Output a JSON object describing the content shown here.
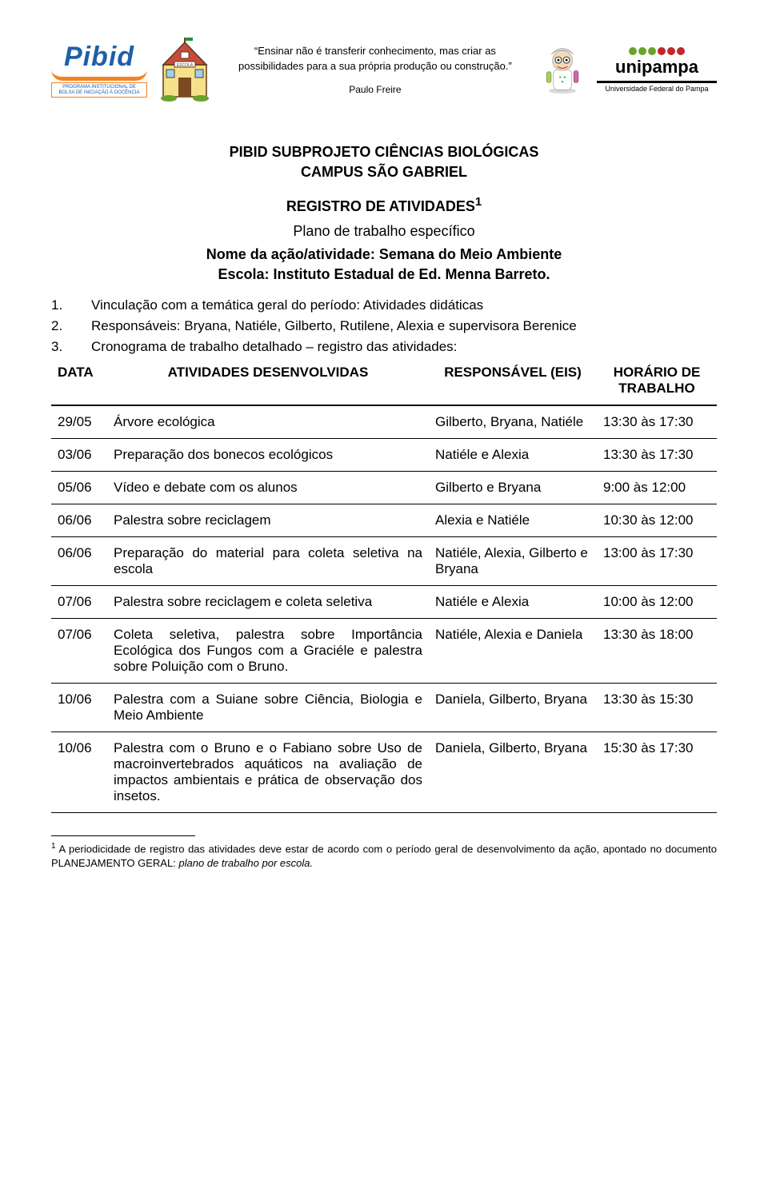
{
  "header": {
    "pibid": {
      "word": "Pibid",
      "sub": "PROGRAMA INSTITUCIONAL DE BOLSA DE INICIAÇÃO À DOCÊNCIA"
    },
    "quote": {
      "text": "“Ensinar não é transferir conhecimento, mas criar as possibilidades para a sua própria produção ou construção.”",
      "author": "Paulo Freire"
    },
    "unipampa": {
      "word": "unipampa",
      "sub": "Universidade Federal do Pampa"
    }
  },
  "title": {
    "line1": "PIBID SUBPROJETO CIÊNCIAS BIOLÓGICAS",
    "line2": "CAMPUS SÃO GABRIEL",
    "subtitle": "REGISTRO DE ATIVIDADES",
    "subtitle_sup": "1",
    "plano": "Plano de trabalho específico",
    "acao_label": "Nome da ação/atividade: ",
    "acao_value": "Semana do Meio Ambiente",
    "escola_label": "Escola: ",
    "escola_value": "Instituto Estadual de Ed. Menna Barreto."
  },
  "items": {
    "n1": "1.",
    "t1": "Vinculação com a temática geral do período: Atividades didáticas",
    "n2": "2.",
    "t2": "Responsáveis: Bryana, Natiéle, Gilberto, Rutilene, Alexia e supervisora Berenice",
    "n3": "3.",
    "t3": "Cronograma de trabalho detalhado – registro das atividades:"
  },
  "table": {
    "headers": {
      "data": "DATA",
      "atv": "ATIVIDADES DESENVOLVIDAS",
      "resp": "RESPONSÁVEL (EIS)",
      "hor": "HORÁRIO DE TRABALHO"
    },
    "rows": [
      {
        "data": "29/05",
        "atv": "Árvore ecológica",
        "resp": "Gilberto, Bryana, Natiéle",
        "hor": "13:30 às 17:30"
      },
      {
        "data": "03/06",
        "atv": "Preparação dos bonecos ecológicos",
        "resp": "Natiéle e Alexia",
        "hor": "13:30 às 17:30"
      },
      {
        "data": "05/06",
        "atv": "Vídeo e debate com os alunos",
        "resp": "Gilberto e Bryana",
        "hor": "9:00 às 12:00"
      },
      {
        "data": "06/06",
        "atv": "Palestra sobre reciclagem",
        "resp": "Alexia e Natiéle",
        "hor": "10:30 às 12:00"
      },
      {
        "data": "06/06",
        "atv": "Preparação do material para coleta seletiva na escola",
        "resp": "Natiéle, Alexia, Gilberto e Bryana",
        "hor": "13:00 às 17:30"
      },
      {
        "data": "07/06",
        "atv": "Palestra sobre reciclagem e coleta seletiva",
        "resp": "Natiéle e Alexia",
        "hor": "10:00 às 12:00"
      },
      {
        "data": "07/06",
        "atv": "Coleta seletiva, palestra sobre Importância Ecológica dos Fungos com a Graciéle e palestra sobre Poluição com o Bruno.",
        "resp": "Natiéle, Alexia e Daniela",
        "hor": "13:30 às 18:00"
      },
      {
        "data": "10/06",
        "atv": "Palestra com a Suiane sobre Ciência, Biologia e Meio Ambiente",
        "resp": "Daniela, Gilberto, Bryana",
        "hor": "13:30 às 15:30"
      },
      {
        "data": "10/06",
        "atv": "Palestra com o Bruno e o Fabiano sobre Uso de macroinvertebrados aquáticos na avaliação de impactos ambientais e prática de observação dos insetos.",
        "resp": "Daniela, Gilberto, Bryana",
        "hor": "15:30 às 17:30"
      }
    ]
  },
  "footnote": {
    "sup": "1",
    "text_a": " A periodicidade de registro das atividades deve estar de acordo com o período geral de desenvolvimento da ação, apontado no documento PLANEJAMENTO GERAL: ",
    "text_em": "plano de trabalho por escola."
  },
  "colors": {
    "pibid_blue": "#1f5fa8",
    "pibid_orange": "#f58220",
    "unipampa_green": "#6aa22b",
    "unipampa_red": "#c1272d",
    "text": "#000000",
    "bg": "#ffffff"
  }
}
